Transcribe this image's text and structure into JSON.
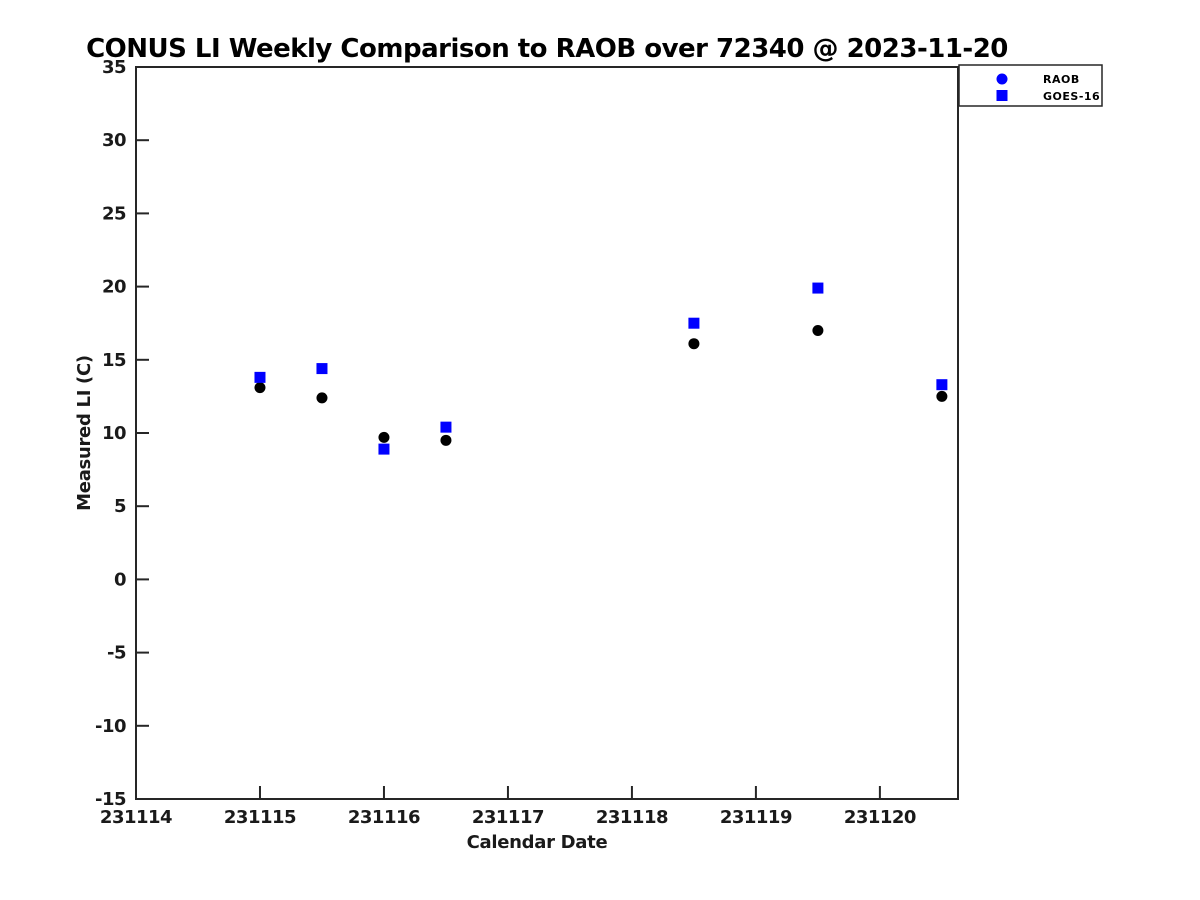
{
  "chart_data": {
    "type": "scatter",
    "title": "CONUS LI Weekly Comparison to RAOB over 72340 @ 2023-11-20",
    "xlabel": "Calendar Date",
    "ylabel": "Measured LI (C)",
    "xlim": [
      231114,
      231120.63
    ],
    "ylim": [
      -15,
      35
    ],
    "x_ticks": [
      231114,
      231115,
      231116,
      231117,
      231118,
      231119,
      231120
    ],
    "x_tick_labels": [
      "231114",
      "231115",
      "231116",
      "231117",
      "231118",
      "231119",
      "231120"
    ],
    "y_ticks": [
      -15,
      -10,
      -5,
      0,
      5,
      10,
      15,
      20,
      25,
      30,
      35
    ],
    "y_tick_labels": [
      "-15",
      "-10",
      "-5",
      "0",
      "5",
      "10",
      "15",
      "20",
      "25",
      "30",
      "35"
    ],
    "grid": false,
    "legend_position": "top-right",
    "x": [
      231115.0,
      231115.5,
      231116.0,
      231116.5,
      231118.5,
      231119.5,
      231120.5
    ],
    "series": [
      {
        "name": "RAOB",
        "marker": "circle",
        "plot_color": "#000000",
        "legend_color": "#0000ff",
        "values": [
          13.1,
          12.4,
          9.7,
          9.5,
          16.1,
          17.0,
          12.5
        ]
      },
      {
        "name": "GOES-16",
        "marker": "square",
        "plot_color": "#0000ff",
        "legend_color": "#0000ff",
        "values": [
          13.8,
          14.4,
          8.9,
          10.4,
          17.5,
          19.9,
          13.3
        ]
      }
    ],
    "colors": {
      "spine": "#262626",
      "tick": "#262626",
      "background": "#ffffff",
      "accent_blue": "#0000ff",
      "marker_black": "#000000"
    }
  }
}
